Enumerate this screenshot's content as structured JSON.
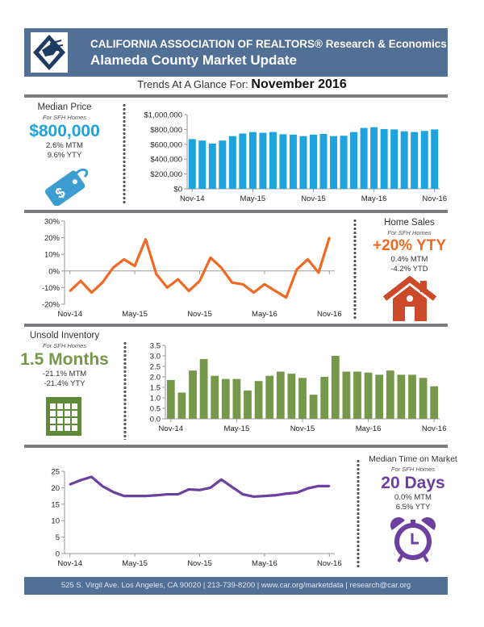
{
  "header": {
    "org": "CALIFORNIA ASSOCIATION OF REALTORS® Research & Economics",
    "title": "Alameda County Market Update",
    "logo_icon": "car-logo-icon"
  },
  "trends": {
    "label": "Trends At A Glance For:",
    "period": "November 2016"
  },
  "median_price": {
    "title": "Median Price",
    "subtitle": "For SFH Homes",
    "value": "$800,000",
    "mtm": "2.6% MTM",
    "yty": "9.6% YTY",
    "color": "#1fa3dc",
    "icon": "price-tag-icon"
  },
  "home_sales": {
    "title": "Home Sales",
    "subtitle": "For SFH Homes",
    "value": "+20% YTY",
    "mtm": "0.4% MTM",
    "ytd": "-4.2% YTD",
    "color": "#f06a23",
    "icon": "house-icon"
  },
  "inventory": {
    "title": "Unsold Inventory",
    "subtitle": "For SFH Homes",
    "value": "1.5 Months",
    "mtm": "-21.1% MTM",
    "yty": "-21.4% YTY",
    "color": "#76984a",
    "icon": "calendar-icon"
  },
  "time_on_market": {
    "title": "Median Time on Market",
    "subtitle": "For SFH Homes",
    "value": "20 Days",
    "mtm": "0.0% MTM",
    "yty": "6.5% YTY",
    "color": "#6d3fa0",
    "icon": "alarm-clock-icon"
  },
  "footer": {
    "text": "525 S. Virgil Ave. Los Angeles, CA 90020 | 213-739-8200 | www.car.org/marketdata | research@car.org"
  },
  "chart_data": [
    {
      "id": "median-price-chart",
      "type": "bar",
      "color": "#1fa3dc",
      "x_tick_labels": [
        "Nov-14",
        "May-15",
        "Nov-15",
        "May-16",
        "Nov-16"
      ],
      "y_ticks": [
        0,
        200000,
        400000,
        600000,
        800000,
        1000000
      ],
      "y_tick_labels": [
        "$0",
        "$200,000",
        "$400,000",
        "$600,000",
        "$800,000",
        "$1,000,000"
      ],
      "ylim": [
        0,
        1000000
      ],
      "values": [
        670000,
        650000,
        610000,
        650000,
        710000,
        745000,
        765000,
        755000,
        765000,
        735000,
        730000,
        710000,
        730000,
        740000,
        710000,
        715000,
        765000,
        820000,
        830000,
        805000,
        800000,
        775000,
        765000,
        780000,
        800000
      ]
    },
    {
      "id": "home-sales-chart",
      "type": "line",
      "color": "#f06a23",
      "x_tick_labels": [
        "Nov-14",
        "May-15",
        "Nov-15",
        "May-16",
        "Nov-16"
      ],
      "y_ticks": [
        -20,
        -10,
        0,
        10,
        20,
        30
      ],
      "y_tick_labels": [
        "-20%",
        "-10%",
        "0%",
        "10%",
        "20%",
        "30%"
      ],
      "ylim": [
        -20,
        30
      ],
      "values": [
        -12,
        -6,
        -13,
        -7,
        2,
        7,
        3,
        19,
        -2,
        -10,
        -5,
        -12,
        -6,
        8,
        2,
        -7,
        -8,
        -13,
        -8,
        -12,
        -16,
        1,
        7,
        -1,
        20
      ]
    },
    {
      "id": "inventory-chart",
      "type": "bar",
      "color": "#76984a",
      "x_tick_labels": [
        "Nov-14",
        "May-15",
        "Nov-15",
        "May-16",
        "Nov-16"
      ],
      "y_ticks": [
        0,
        0.5,
        1,
        1.5,
        2,
        2.5,
        3,
        3.5
      ],
      "y_tick_labels": [
        "0.0",
        "0.5",
        "1.0",
        "1.5",
        "2.0",
        "2.5",
        "3.0",
        "3.5"
      ],
      "ylim": [
        0,
        3.5
      ],
      "values": [
        1.85,
        1.25,
        2.3,
        2.85,
        2.05,
        1.9,
        1.9,
        1.35,
        1.8,
        2.05,
        2.25,
        2.15,
        1.95,
        1.15,
        2.0,
        3.0,
        2.25,
        2.25,
        2.2,
        2.1,
        2.3,
        2.1,
        2.1,
        1.95,
        1.55
      ]
    },
    {
      "id": "time-on-market-chart",
      "type": "line",
      "color": "#6d3fa0",
      "x_tick_labels": [
        "Nov-14",
        "May-15",
        "Nov-15",
        "May-16",
        "Nov-16"
      ],
      "y_ticks": [
        0,
        5,
        10,
        15,
        20,
        25
      ],
      "y_tick_labels": [
        "0",
        "5",
        "10",
        "15",
        "20",
        "25"
      ],
      "ylim": [
        0,
        25
      ],
      "values": [
        21,
        22.3,
        23.3,
        20.5,
        18.7,
        17.5,
        17.5,
        17.5,
        17.7,
        18,
        18,
        19.5,
        19.3,
        20,
        22.5,
        20.2,
        18,
        17.3,
        17.5,
        17.7,
        18.2,
        18.5,
        19.8,
        20.5,
        20.5
      ]
    }
  ]
}
